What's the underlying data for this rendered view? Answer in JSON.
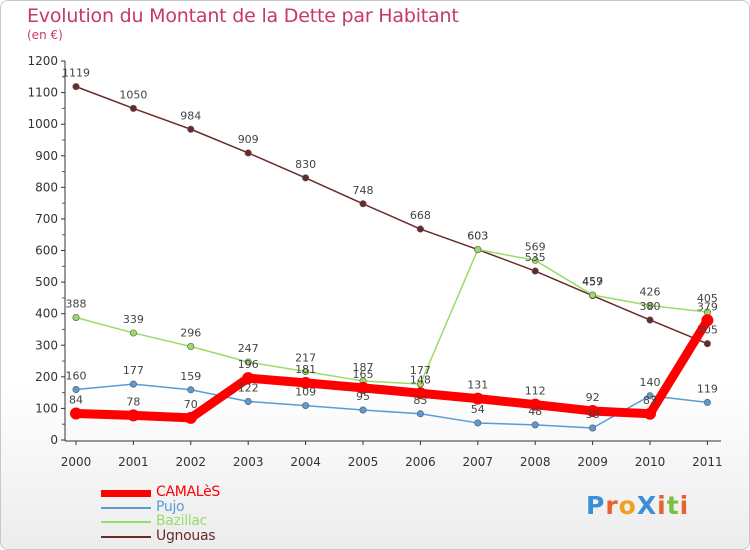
{
  "header": {
    "title": "Evolution du Montant de la Dette par Habitant",
    "unit": "(en €)"
  },
  "brand": "ProXiti",
  "colors": {
    "title": "#c8366e",
    "CAMALèS": "#ff0000",
    "Pujo": "#5b9bd5",
    "Bazillac": "#99dd66",
    "Ugnouas": "#6b2a2a"
  },
  "chart_data": {
    "type": "line",
    "title": "Evolution du Montant de la Dette par Habitant",
    "subtitle": "(en €)",
    "categories": [
      "2000",
      "2001",
      "2002",
      "2003",
      "2004",
      "2005",
      "2006",
      "2007",
      "2008",
      "2009",
      "2010",
      "2011"
    ],
    "ylim": [
      0,
      1200
    ],
    "yticks": [
      0,
      100,
      200,
      300,
      400,
      500,
      600,
      700,
      800,
      900,
      1000,
      1100,
      1200
    ],
    "grid": false,
    "legend_position": "bottom-left",
    "series": [
      {
        "name": "CAMALèS",
        "values": [
          84,
          78,
          70,
          196,
          181,
          165,
          148,
          131,
          112,
          92,
          83,
          379
        ]
      },
      {
        "name": "Pujo",
        "values": [
          160,
          177,
          159,
          122,
          109,
          95,
          83,
          54,
          48,
          38,
          140,
          119
        ]
      },
      {
        "name": "Bazillac",
        "values": [
          388,
          339,
          296,
          247,
          217,
          187,
          177,
          603,
          569,
          459,
          426,
          405
        ]
      },
      {
        "name": "Ugnouas",
        "values": [
          1119,
          1050,
          984,
          909,
          830,
          748,
          668,
          603,
          535,
          457,
          380,
          305
        ]
      }
    ]
  }
}
